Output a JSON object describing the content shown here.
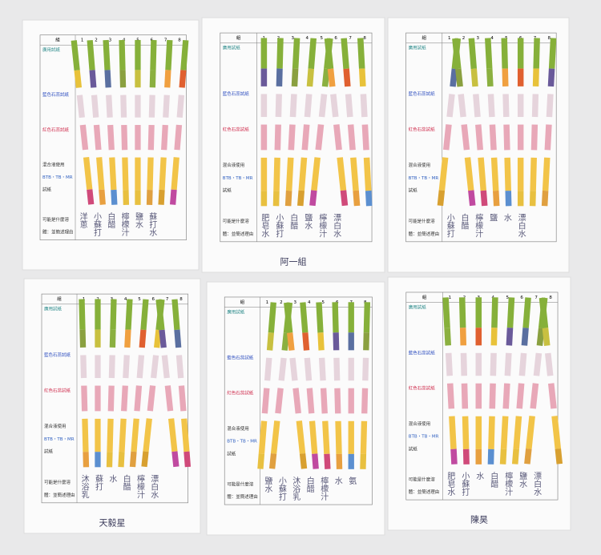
{
  "form": {
    "group_label": "組",
    "columns": [
      1,
      2,
      3,
      4,
      5,
      6,
      7,
      8
    ],
    "row_labels": [
      "廣用試紙",
      "藍色石蕊試紙",
      "紅色石蕊試紙",
      "混合液使用",
      "BTB・TB・MR",
      "試紙",
      "可能是什麼溶",
      "體：並簡述理由"
    ]
  },
  "sheets": [
    {
      "notes": [
        "洋蔥",
        "小蘇打",
        "白醋",
        "檸檬汁",
        "鹽水",
        "蘇打水"
      ]
    },
    {
      "notes": [
        "肥皂水",
        "小蘇打",
        "白醋",
        "鹽水",
        "檸檬汁",
        "漂白水"
      ],
      "caption": "阿一組"
    },
    {
      "notes": [
        "小蘇打",
        "白醋",
        "檸檬汁",
        "鹽",
        "水",
        "漂白水"
      ]
    },
    {
      "notes": [
        "沐浴乳",
        "蘇打",
        "水",
        "白醋",
        "檸檬汁",
        "漂白水"
      ],
      "caption": "天毅星"
    },
    {
      "notes": [
        "鹽水",
        "小蘇打",
        "沐浴乳",
        "白醋",
        "檸檬汁",
        "水",
        "氨"
      ]
    },
    {
      "notes": [
        "肥皂水",
        "小蘇打",
        "水",
        "白醋",
        "檸檬汁",
        "鹽水",
        "漂白水"
      ],
      "caption": "陳昊"
    }
  ]
}
